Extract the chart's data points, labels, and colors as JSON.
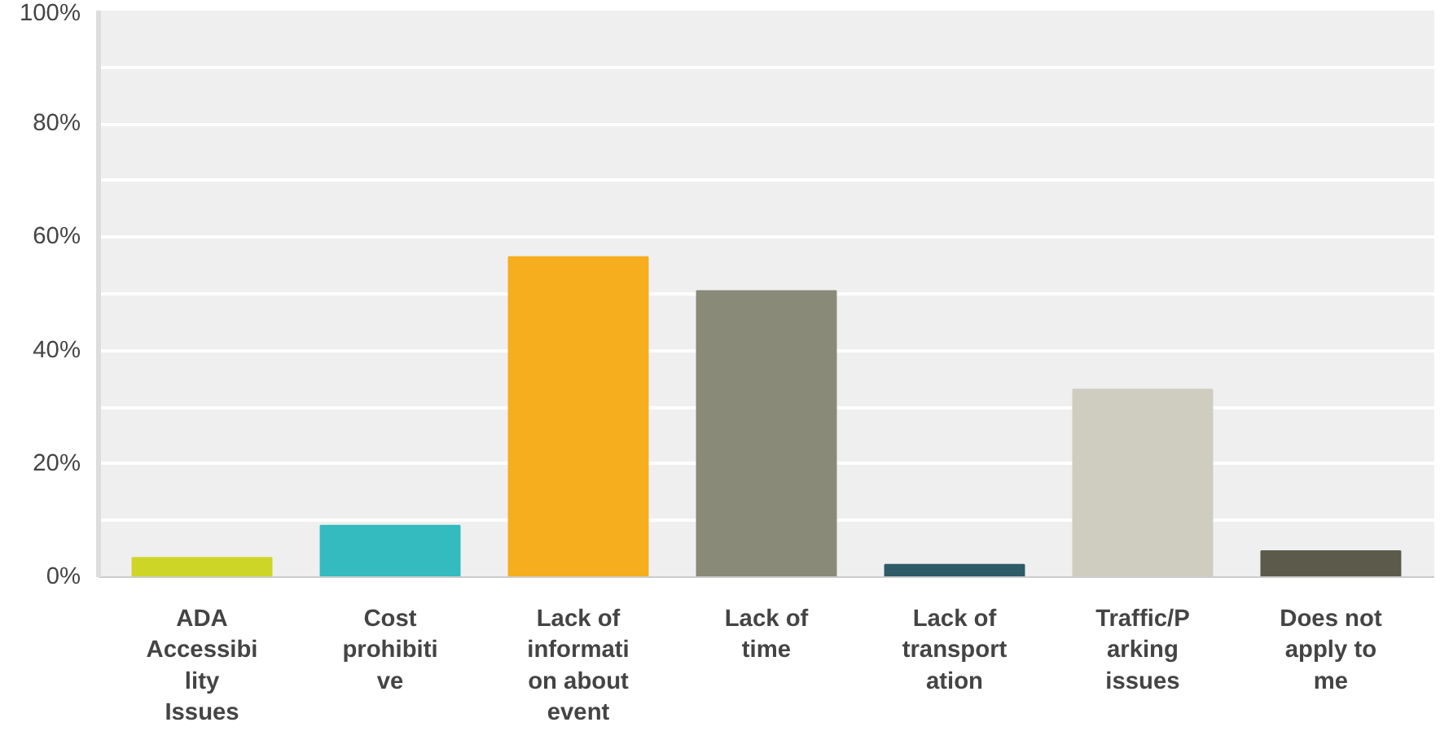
{
  "chart_data": {
    "type": "bar",
    "categories": [
      "ADA Accessibility Issues",
      "Cost prohibitive",
      "Lack of information about event",
      "Lack of time",
      "Lack of transportation",
      "Traffic/Parking issues",
      "Does not apply to me"
    ],
    "values": [
      3.4,
      9.1,
      56.5,
      50.5,
      2.2,
      33.1,
      4.6
    ],
    "colors": [
      "#cdd626",
      "#33bbbf",
      "#f6ae1e",
      "#8a8a78",
      "#2e5b68",
      "#cfcdbf",
      "#5c5a4a"
    ],
    "ylim": [
      0,
      100
    ],
    "yticks": [
      {
        "value": 0,
        "label": "0%"
      },
      {
        "value": 10,
        "label": null
      },
      {
        "value": 20,
        "label": "20%"
      },
      {
        "value": 30,
        "label": null
      },
      {
        "value": 40,
        "label": "40%"
      },
      {
        "value": 50,
        "label": null
      },
      {
        "value": 60,
        "label": "60%"
      },
      {
        "value": 70,
        "label": null
      },
      {
        "value": 80,
        "label": "80%"
      },
      {
        "value": 90,
        "label": null
      },
      {
        "value": 100,
        "label": "100%"
      }
    ],
    "grid": "y"
  }
}
